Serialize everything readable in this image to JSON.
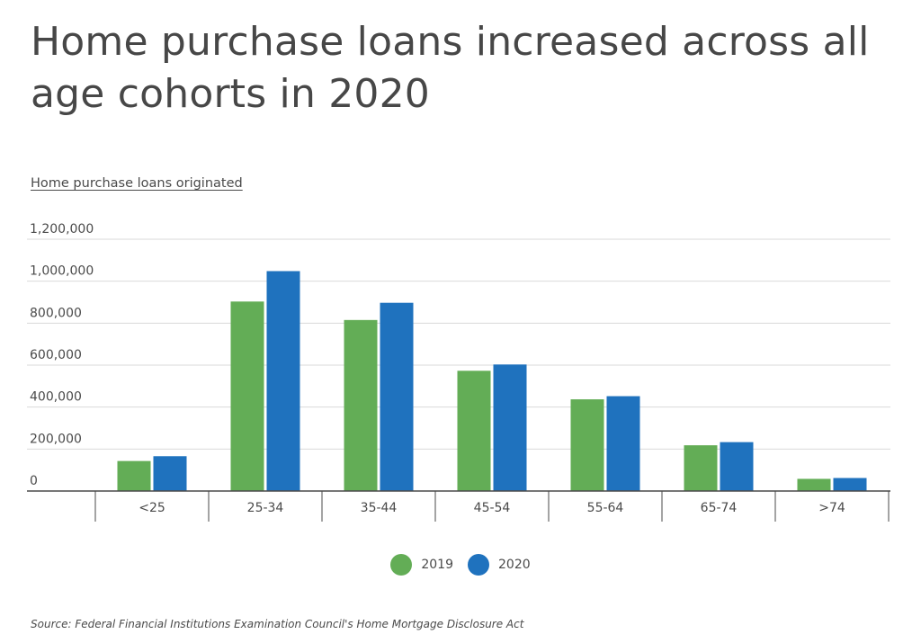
{
  "title": "Home purchase loans increased across all age cohorts in 2020",
  "source_text": "Source:  Federal Financial Institutions Examination Council's Home Mortgage Disclosure Act",
  "colors": {
    "series_2019": "#63ad56",
    "series_2020": "#1f72be",
    "grid": "#d9d9d9",
    "axis": "#4a4a4a",
    "text": "#4a4a4a"
  },
  "chart_data": {
    "type": "bar",
    "title": "Home purchase loans increased across all age cohorts in 2020",
    "xlabel": "",
    "ylabel": "Home purchase loans originated",
    "categories": [
      "<25",
      "25-34",
      "35-44",
      "45-54",
      "55-64",
      "65-74",
      ">74"
    ],
    "series": [
      {
        "name": "2019",
        "values": [
          143000,
          903000,
          815000,
          573000,
          437000,
          218000,
          58000
        ]
      },
      {
        "name": "2020",
        "values": [
          166000,
          1048000,
          897000,
          603000,
          452000,
          233000,
          62000
        ]
      }
    ],
    "ylim": [
      0,
      1200000
    ],
    "yticks": [
      0,
      200000,
      400000,
      600000,
      800000,
      1000000,
      1200000
    ],
    "ytick_labels": [
      "0",
      "200,000",
      "400,000",
      "600,000",
      "800,000",
      "1,000,000",
      "1,200,000"
    ],
    "grid": true,
    "legend_position": "bottom-center"
  }
}
